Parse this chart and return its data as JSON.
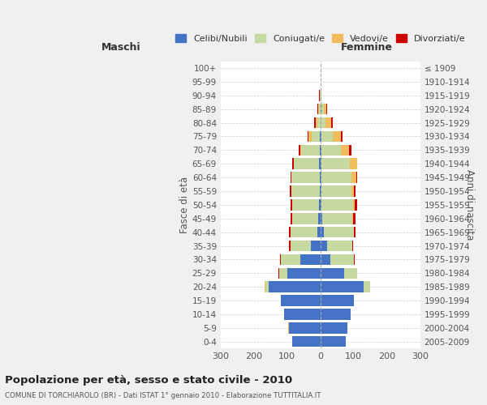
{
  "age_groups": [
    "0-4",
    "5-9",
    "10-14",
    "15-19",
    "20-24",
    "25-29",
    "30-34",
    "35-39",
    "40-44",
    "45-49",
    "50-54",
    "55-59",
    "60-64",
    "65-69",
    "70-74",
    "75-79",
    "80-84",
    "85-89",
    "90-94",
    "95-99",
    "100+"
  ],
  "birth_years": [
    "2005-2009",
    "2000-2004",
    "1995-1999",
    "1990-1994",
    "1985-1989",
    "1980-1984",
    "1975-1979",
    "1970-1974",
    "1965-1969",
    "1960-1964",
    "1955-1959",
    "1950-1954",
    "1945-1949",
    "1940-1944",
    "1935-1939",
    "1930-1934",
    "1925-1929",
    "1920-1924",
    "1915-1919",
    "1910-1914",
    "≤ 1909"
  ],
  "male": {
    "celibi": [
      85,
      95,
      110,
      120,
      155,
      100,
      60,
      30,
      10,
      6,
      4,
      2,
      2,
      4,
      2,
      2,
      0,
      0,
      0,
      0,
      0
    ],
    "coniugati": [
      0,
      0,
      0,
      0,
      10,
      25,
      60,
      60,
      80,
      80,
      80,
      85,
      85,
      75,
      55,
      25,
      10,
      5,
      2,
      0,
      0
    ],
    "vedovi": [
      0,
      2,
      0,
      0,
      3,
      0,
      0,
      0,
      0,
      0,
      0,
      0,
      0,
      2,
      3,
      8,
      5,
      2,
      1,
      0,
      0
    ],
    "divorziati": [
      0,
      0,
      0,
      0,
      0,
      1,
      2,
      4,
      4,
      5,
      6,
      5,
      3,
      4,
      6,
      4,
      3,
      2,
      1,
      0,
      0
    ]
  },
  "female": {
    "nubili": [
      75,
      80,
      90,
      100,
      130,
      70,
      30,
      20,
      10,
      6,
      2,
      2,
      2,
      4,
      2,
      2,
      0,
      2,
      0,
      0,
      0
    ],
    "coniugate": [
      0,
      0,
      0,
      0,
      20,
      40,
      70,
      75,
      90,
      90,
      95,
      90,
      90,
      85,
      60,
      35,
      15,
      8,
      2,
      0,
      0
    ],
    "vedove": [
      0,
      0,
      0,
      0,
      0,
      0,
      0,
      0,
      0,
      2,
      5,
      8,
      15,
      20,
      25,
      25,
      18,
      8,
      2,
      0,
      0
    ],
    "divorziate": [
      0,
      0,
      0,
      0,
      0,
      0,
      2,
      2,
      6,
      8,
      8,
      5,
      4,
      2,
      5,
      4,
      5,
      2,
      0,
      0,
      0
    ]
  },
  "colors": {
    "celibi": "#4472C4",
    "coniugati": "#C5D9A0",
    "vedovi": "#F0BC5E",
    "divorziati": "#CC0000"
  },
  "xlim": 300,
  "title": "Popolazione per età, sesso e stato civile - 2010",
  "subtitle": "COMUNE DI TORCHIAROLO (BR) - Dati ISTAT 1° gennaio 2010 - Elaborazione TUTTITALIA.IT",
  "ylabel_left": "Fasce di età",
  "ylabel_right": "Anni di nascita",
  "xlabel_left": "Maschi",
  "xlabel_right": "Femmine",
  "bg_color": "#f0f0f0",
  "plot_bg_color": "#ffffff"
}
